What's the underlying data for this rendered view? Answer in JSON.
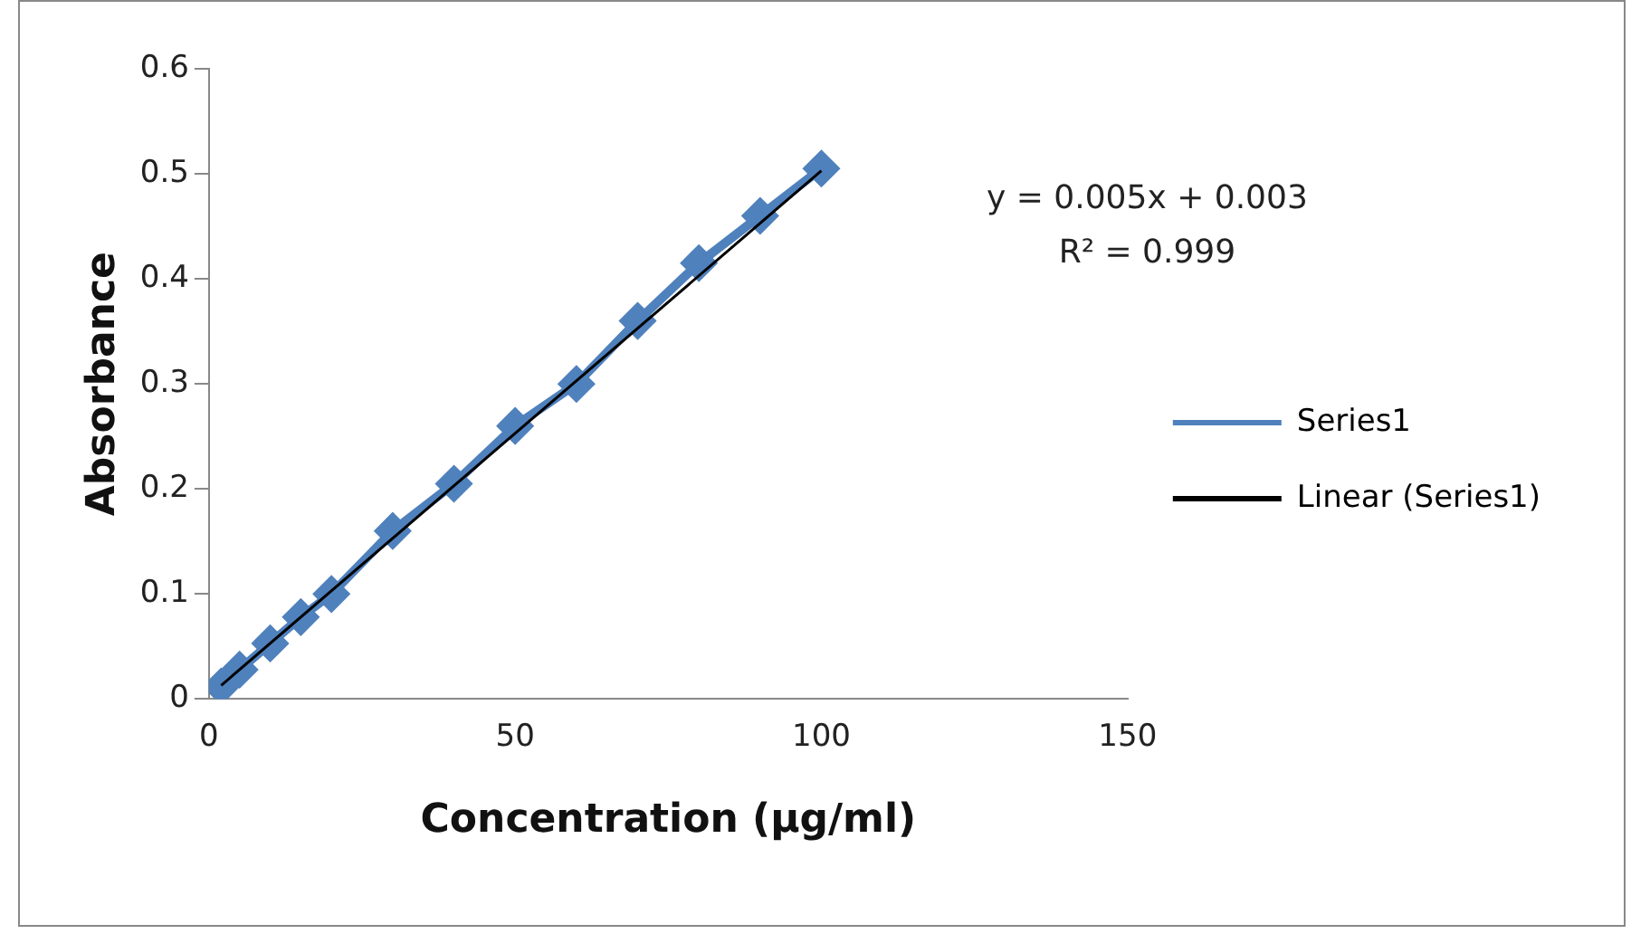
{
  "chart_data": {
    "type": "line",
    "xlabel": "Concentration (µg/ml)",
    "ylabel": "Absorbance",
    "x": [
      2,
      5,
      10,
      15,
      20,
      30,
      40,
      50,
      60,
      70,
      80,
      90,
      100
    ],
    "series": [
      {
        "name": "Series1",
        "color": "#4f81bd",
        "values": [
          0.012,
          0.028,
          0.053,
          0.078,
          0.1,
          0.16,
          0.205,
          0.26,
          0.3,
          0.36,
          0.415,
          0.46,
          0.505
        ],
        "marker": "diamond"
      },
      {
        "name": "Linear (Series1)",
        "color": "#000000",
        "type": "line",
        "x": [
          2,
          100
        ],
        "values": [
          0.013,
          0.503
        ],
        "marker": "none"
      }
    ],
    "xlim": [
      0,
      150
    ],
    "xticks": [
      0,
      50,
      100,
      150
    ],
    "ylim": [
      0,
      0.6
    ],
    "yticks": [
      0,
      0.1,
      0.2,
      0.3,
      0.4,
      0.5,
      0.6
    ],
    "grid": false,
    "legend": "right",
    "line_style": "solid",
    "annotations": [
      "y = 0.005x + 0.003",
      "R² = 0.999"
    ]
  }
}
